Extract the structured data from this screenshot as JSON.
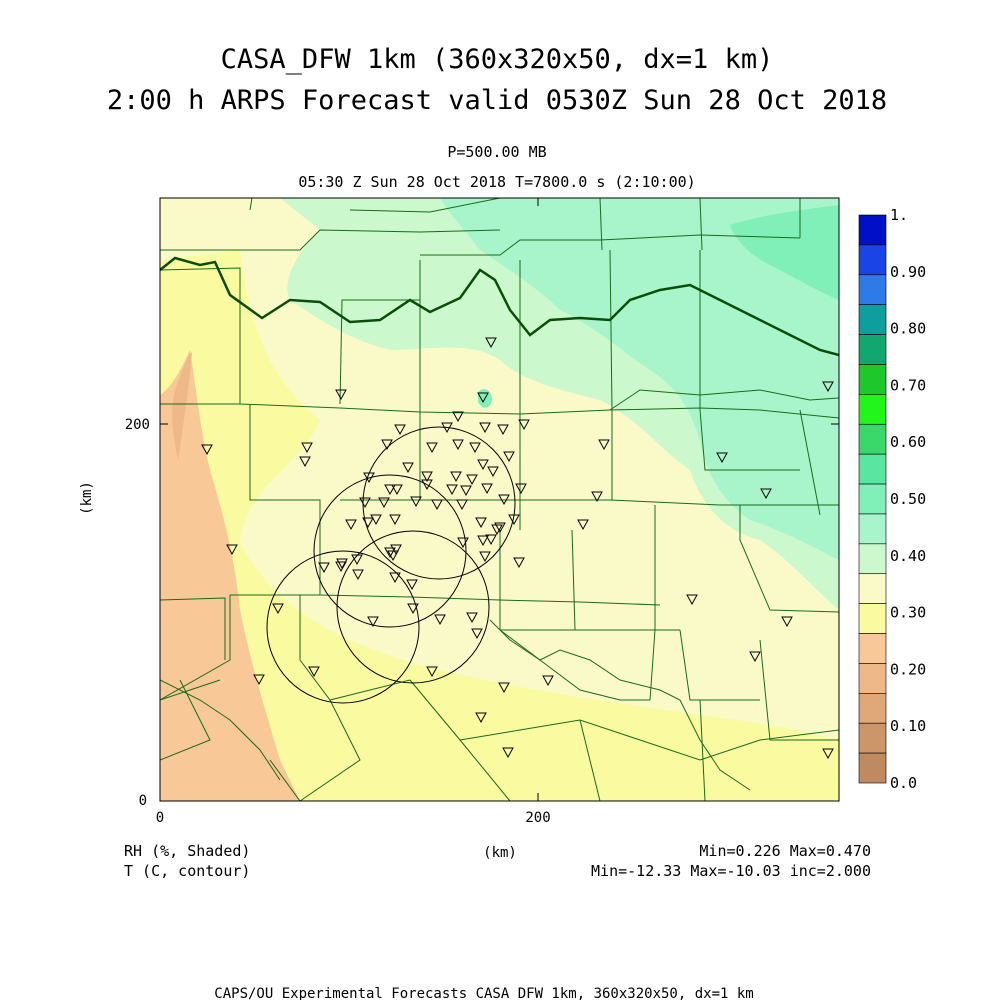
{
  "title": {
    "line1": "CASA_DFW 1km (360x320x50, dx=1 km)",
    "line2": "2:00 h ARPS Forecast valid 0530Z Sun 28 Oct 2018"
  },
  "subtitle": {
    "level": "P=500.00 MB",
    "time": "05:30 Z Sun 28 Oct 2018   T=7800.0 s (2:10:00)"
  },
  "axes": {
    "xlabel": "(km)",
    "ylabel": "(km)",
    "x_ticks": [
      "0",
      "200"
    ],
    "y_ticks": [
      "0",
      "200"
    ]
  },
  "colorbar": {
    "labels": [
      "1.",
      "0.90",
      "0.80",
      "0.70",
      "0.60",
      "0.50",
      "0.40",
      "0.30",
      "0.20",
      "0.10",
      "0.0"
    ],
    "colors_top_to_bottom": [
      "#0010c8",
      "#1a44e6",
      "#2e7ae8",
      "#0f9e9e",
      "#11a870",
      "#1cc82a",
      "#22f51a",
      "#3ad86a",
      "#5ae6a0",
      "#80f0b8",
      "#a8f5cc",
      "#cbf8cc",
      "#fafac8",
      "#fafaa0",
      "#f8c896",
      "#eeb888",
      "#e0a878",
      "#cc956a",
      "#c08a60"
    ]
  },
  "footer": {
    "field1": "RH (%, Shaded)",
    "field2": "T (C, contour)",
    "stats1": "Min=0.226 Max=0.470",
    "stats2": "Min=-12.33 Max=-10.03 inc=2.000",
    "credit": "CAPS/OU Experimental Forecasts  CASA DFW 1km, 360x320x50, dx=1 km"
  }
}
